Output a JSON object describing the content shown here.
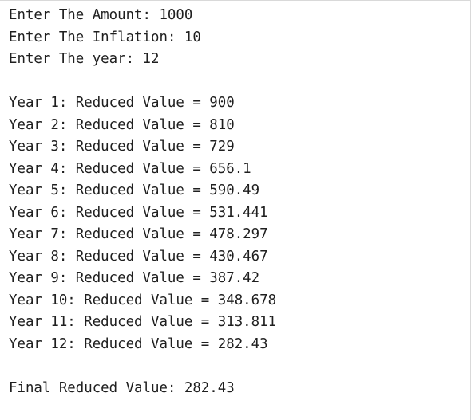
{
  "console": {
    "inputs": [
      "Enter The Amount: 1000",
      "Enter The Inflation: 10",
      "Enter The year: 12"
    ],
    "results": [
      "Year 1: Reduced Value = 900",
      "Year 2: Reduced Value = 810",
      "Year 3: Reduced Value = 729",
      "Year 4: Reduced Value = 656.1",
      "Year 5: Reduced Value = 590.49",
      "Year 6: Reduced Value = 531.441",
      "Year 7: Reduced Value = 478.297",
      "Year 8: Reduced Value = 430.467",
      "Year 9: Reduced Value = 387.42",
      "Year 10: Reduced Value = 348.678",
      "Year 11: Reduced Value = 313.811",
      "Year 12: Reduced Value = 282.43"
    ],
    "final": "Final Reduced Value: 282.43"
  }
}
